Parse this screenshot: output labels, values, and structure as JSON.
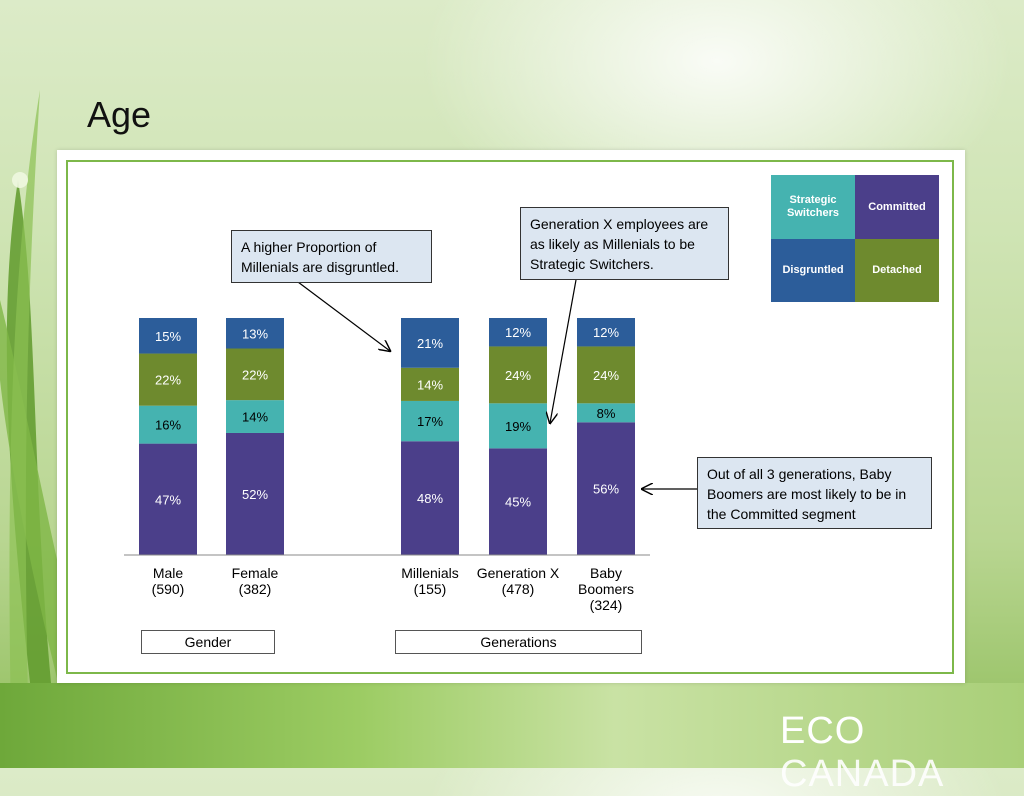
{
  "slide": {
    "title": "Age",
    "brand_first": "ECO",
    "brand_second": "CANADA"
  },
  "colors": {
    "committed": "#4b3f8a",
    "strategic_switchers": "#45b3b0",
    "detached": "#6e8a2e",
    "disgruntled": "#2c5d9a"
  },
  "legend": [
    {
      "name": "Strategic Switchers",
      "color": "#45b3b0"
    },
    {
      "name": "Committed",
      "color": "#4b3f8a"
    },
    {
      "name": "Disgruntled",
      "color": "#2c5d9a"
    },
    {
      "name": "Detached",
      "color": "#6e8a2e"
    }
  ],
  "groups": {
    "gender": "Gender",
    "generations": "Generations"
  },
  "callouts": {
    "millenials": "A higher Proportion of Millenials are disgruntled.",
    "genx": "Generation X employees are as likely as Millenials to be Strategic Switchers.",
    "boomers": "Out of all 3 generations, Baby Boomers are most likely to be in the Committed segment"
  },
  "chart_data": {
    "type": "bar",
    "stacked": true,
    "categories": [
      "Male (590)",
      "Female (382)",
      "Millenials (155)",
      "Generation X (478)",
      "Baby Boomers (324)"
    ],
    "category_lines": [
      [
        "Male",
        "(590)"
      ],
      [
        "Female",
        "(382)"
      ],
      [
        "Millenials",
        "(155)"
      ],
      [
        "Generation X",
        "(478)"
      ],
      [
        "Baby",
        "Boomers",
        "(324)"
      ]
    ],
    "series": [
      {
        "name": "Committed",
        "values": [
          47,
          52,
          48,
          45,
          56
        ],
        "labels": [
          "47%",
          "52%",
          "48%",
          "45%",
          "56%"
        ]
      },
      {
        "name": "Strategic Switchers",
        "values": [
          16,
          14,
          17,
          19,
          8
        ],
        "labels": [
          "16%",
          "14%",
          "17%",
          "19%",
          "8%"
        ]
      },
      {
        "name": "Detached",
        "values": [
          22,
          22,
          14,
          24,
          24
        ],
        "labels": [
          "22%",
          "22%",
          "14%",
          "24%",
          "24%"
        ]
      },
      {
        "name": "Disgruntled",
        "values": [
          15,
          13,
          21,
          12,
          12
        ],
        "labels": [
          "15%",
          "13%",
          "21%",
          "12%",
          "12%"
        ]
      }
    ],
    "ylim": [
      0,
      100
    ],
    "grid": false,
    "legend_position": "top-right"
  }
}
